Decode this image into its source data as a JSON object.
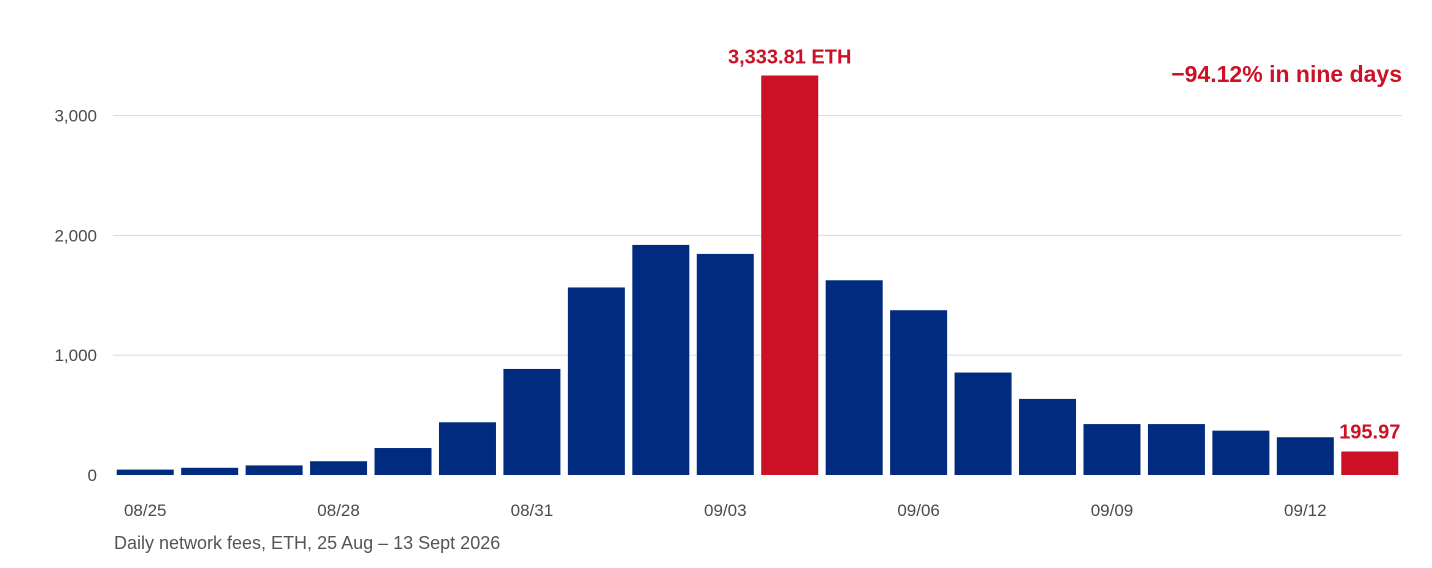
{
  "chart_data": {
    "type": "bar",
    "categories": [
      "08/25",
      "08/26",
      "08/27",
      "08/28",
      "08/29",
      "08/30",
      "08/31",
      "09/01",
      "09/02",
      "09/03",
      "09/04",
      "09/05",
      "09/06",
      "09/07",
      "09/08",
      "09/09",
      "09/10",
      "09/11",
      "09/12",
      "09/13"
    ],
    "x_tick_labels": [
      "08/25",
      "08/28",
      "08/31",
      "09/03",
      "09/06",
      "09/09",
      "09/12"
    ],
    "values": [
      45,
      60,
      80,
      115,
      225,
      440,
      885,
      1565,
      1920,
      1845,
      3333.81,
      1625,
      1375,
      855,
      635,
      425,
      425,
      370,
      315,
      195.97
    ],
    "highlight_indices": [
      10,
      19
    ],
    "ylim": [
      0,
      3600
    ],
    "y_ticks": [
      0,
      1000,
      2000,
      3000
    ],
    "y_tick_labels": [
      "0",
      "1,000",
      "2,000",
      "3,000"
    ],
    "grid": true,
    "colors": {
      "bar": "#002b7f",
      "highlight": "#cc1126",
      "grid": "#dcdcdc",
      "text": "#4a4a4a"
    },
    "annotations": {
      "peak_label": "3,333.81 ETH",
      "last_label": "195.97",
      "headline": "−94.12% in nine days"
    },
    "caption": "Daily network fees, ETH, 25 Aug – 13 Sept 2026"
  }
}
